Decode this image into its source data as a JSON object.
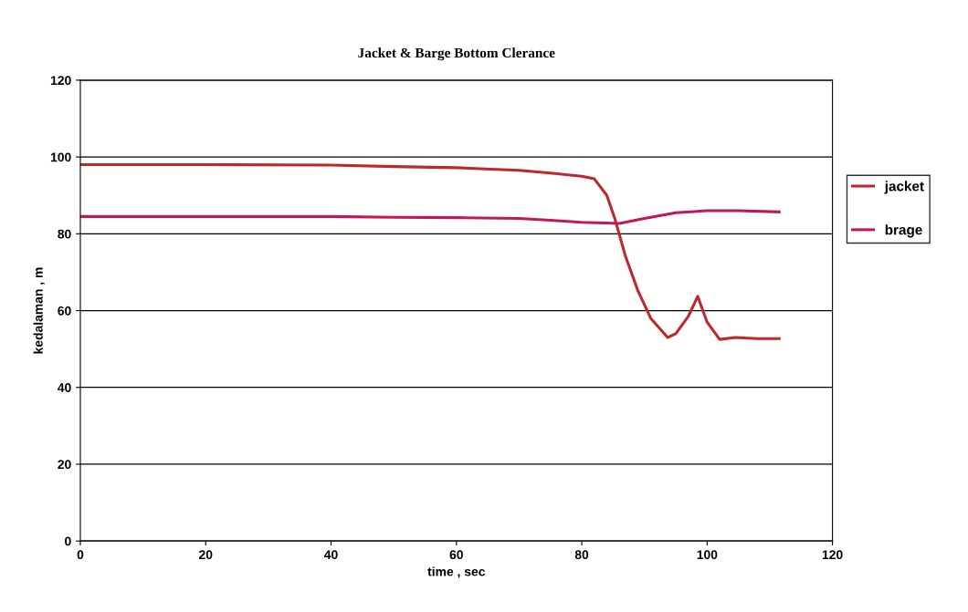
{
  "chart_data": {
    "type": "line",
    "title": "Jacket & Barge Bottom Clerance",
    "xlabel": "time , sec",
    "ylabel": "kedalaman , m",
    "xlim": [
      0,
      120
    ],
    "xticks": [
      0,
      20,
      40,
      60,
      80,
      100,
      120
    ],
    "ylim": [
      0,
      120
    ],
    "yticks": [
      0,
      20,
      40,
      60,
      80,
      100,
      120
    ],
    "grid": "y",
    "legend": "right",
    "marker": "none",
    "line_style": "solid",
    "series": [
      {
        "name": "jacket",
        "color": "#c0272d",
        "x": [
          0,
          20,
          40,
          50,
          60,
          70,
          75,
          80,
          82,
          84,
          85.3,
          87,
          89,
          91,
          93.7,
          95,
          97,
          98.5,
          100,
          102,
          104.5,
          108,
          111.5
        ],
        "values": [
          98,
          98,
          97.9,
          97.5,
          97.2,
          96.5,
          95.8,
          95,
          94.3,
          90,
          83.8,
          74,
          65,
          58,
          53,
          54,
          58.5,
          63.7,
          57,
          52.5,
          53,
          52.7,
          52.7
        ]
      },
      {
        "name": "brage",
        "color": "#c2185b",
        "x": [
          0,
          20,
          40,
          50,
          60,
          70,
          75,
          80,
          86,
          90,
          95,
          100,
          105,
          111.5
        ],
        "values": [
          84.5,
          84.5,
          84.5,
          84.3,
          84.2,
          84,
          83.5,
          83,
          82.7,
          84,
          85.5,
          86,
          86,
          85.7
        ]
      }
    ]
  }
}
